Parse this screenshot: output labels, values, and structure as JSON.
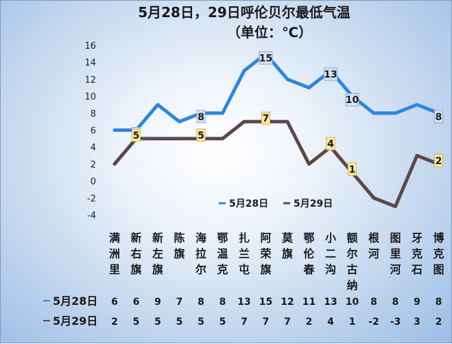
{
  "chart_data": {
    "type": "line",
    "title": "5月28日，29日呼伦贝尔最低气温",
    "subtitle": "（单位：℃）",
    "categories": [
      "满洲里",
      "新右旗",
      "新左旗",
      "陈旗",
      "海拉尔",
      "鄂温克",
      "扎兰屯",
      "阿荣旗",
      "莫旗",
      "鄂伦春",
      "小二沟",
      "额尔古纳",
      "根河",
      "图里河",
      "牙克石",
      "博克图"
    ],
    "series": [
      {
        "name": "5月28日",
        "color": "#2e86de",
        "values": [
          6,
          6,
          9,
          7,
          8,
          8,
          13,
          15,
          12,
          11,
          13,
          10,
          8,
          8,
          9,
          8
        ]
      },
      {
        "name": "5月29日",
        "color": "#5c4848",
        "values": [
          2,
          5,
          5,
          5,
          5,
          5,
          7,
          7,
          7,
          2,
          4,
          1,
          -2,
          -3,
          3,
          2
        ]
      }
    ],
    "data_labels": {
      "5月28日": [
        1,
        4,
        7,
        10,
        11,
        15
      ],
      "5月29日": [
        1,
        4,
        7,
        10,
        11,
        15
      ]
    },
    "ylim": [
      -4,
      16
    ],
    "yticks": [
      -4,
      -2,
      0,
      2,
      4,
      6,
      8,
      10,
      12,
      14,
      16
    ],
    "legend_position": "bottom-center",
    "data_table": true
  }
}
